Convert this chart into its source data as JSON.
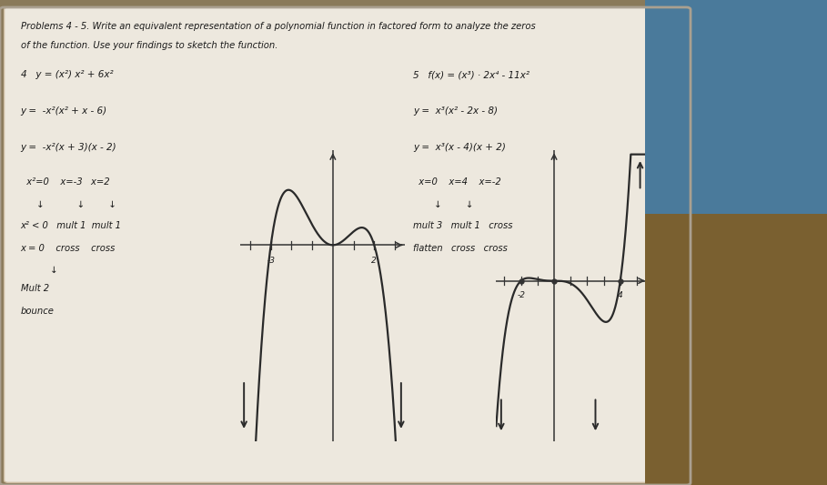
{
  "bg_color": "#8a7a5a",
  "paper_color": "#ede8de",
  "paper_color2": "#e8e2d5",
  "blue_color": "#4a7a9b",
  "tan_color": "#9a7a3a",
  "curve_color": "#2a2a2a",
  "text_color": "#1a1a1a",
  "axis_color": "#333333",
  "line_width": 1.6,
  "title_line1": "Problems 4 - 5. Write an equivalent representation of a polynomial function in factored form to analyze the zeros",
  "title_line2": "of the function. Use your findings to sketch the function.",
  "graph4_xlim": [
    -4.5,
    3.5
  ],
  "graph4_ylim": [
    -58,
    28
  ],
  "graph5_xlim": [
    -3.5,
    5.5
  ],
  "graph5_ylim": [
    -80,
    65
  ]
}
